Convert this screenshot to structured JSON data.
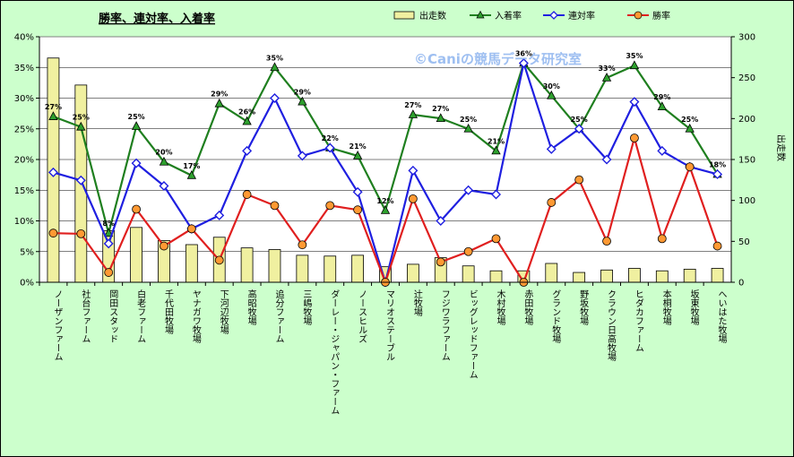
{
  "chart_data": {
    "type": "bar+line",
    "title": "勝率、連対率、入着率",
    "watermark": "©Caniの競馬データ研究室",
    "categories": [
      "ノーザンファーム",
      "社台ファーム",
      "岡田スタッド",
      "白老ファーム",
      "千代田牧場",
      "ヤナガワ牧場",
      "下河辺牧場",
      "高昭牧場",
      "追分ファーム",
      "三嶋牧場",
      "ダーレー・ジャパン・ファーム",
      "ノースヒルズ",
      "マリオステーブル",
      "辻牧場",
      "フジワラファーム",
      "ビッグレッドファーム",
      "木村牧場",
      "赤田牧場",
      "グランド牧場",
      "野坂牧場",
      "クラウン日高牧場",
      "ヒダカファーム",
      "本桐牧場",
      "坂東牧場",
      "へいはた牧場"
    ],
    "y_left": {
      "ticks": [
        "0%",
        "5%",
        "10%",
        "15%",
        "20%",
        "25%",
        "30%",
        "35%",
        "40%"
      ],
      "ylim": [
        0,
        40
      ]
    },
    "y_right": {
      "ticks": [
        "0",
        "50",
        "100",
        "150",
        "200",
        "250",
        "300"
      ],
      "ylim": [
        0,
        300
      ],
      "label": "出走数"
    },
    "legend_position": "top",
    "series": [
      {
        "name": "出走数",
        "kind": "bar",
        "axis": "right",
        "color": "#f0f0a0",
        "values": [
          274,
          241,
          63,
          67,
          51,
          46,
          55,
          42,
          40,
          33,
          32,
          33,
          19,
          22,
          30,
          20,
          14,
          14,
          23,
          12,
          15,
          17,
          14,
          16,
          17
        ]
      },
      {
        "name": "入着率",
        "kind": "line",
        "axis": "left",
        "color": "#1f7f1f",
        "marker": "triangle",
        "values": [
          27.0,
          25.3,
          8.0,
          25.4,
          19.6,
          17.4,
          29.1,
          26.2,
          35.0,
          29.4,
          21.9,
          20.6,
          11.7,
          27.3,
          26.7,
          25.0,
          21.4,
          35.7,
          30.4,
          25.0,
          33.3,
          35.3,
          28.6,
          25.0,
          17.6
        ]
      },
      {
        "name": "連対率",
        "kind": "line",
        "axis": "left",
        "color": "#1f1fe0",
        "marker": "diamond",
        "values": [
          17.9,
          16.6,
          6.3,
          19.4,
          15.7,
          8.7,
          10.9,
          21.4,
          30.0,
          20.6,
          21.9,
          14.7,
          0.0,
          18.2,
          10.0,
          15.0,
          14.3,
          35.7,
          21.7,
          25.0,
          20.0,
          29.4,
          21.4,
          18.8,
          17.6
        ]
      },
      {
        "name": "勝率",
        "kind": "line",
        "axis": "left",
        "color": "#e01f1f",
        "marker": "circle",
        "values": [
          8.0,
          7.9,
          1.6,
          11.9,
          5.9,
          8.7,
          3.6,
          14.3,
          12.5,
          6.1,
          12.5,
          11.8,
          0.0,
          13.6,
          3.3,
          5.0,
          7.1,
          0.0,
          13.0,
          16.7,
          6.7,
          23.5,
          7.1,
          18.8,
          5.9
        ]
      }
    ],
    "data_labels": [
      "27%",
      "25%",
      "8%",
      "25%",
      "20%",
      "17%",
      "29%",
      "26%",
      "35%",
      "29%",
      "22%",
      "21%",
      "12%",
      "27%",
      "27%",
      "25%",
      "21%",
      "36%",
      "30%",
      "25%",
      "33%",
      "35%",
      "29%",
      "25%",
      "18%"
    ]
  }
}
